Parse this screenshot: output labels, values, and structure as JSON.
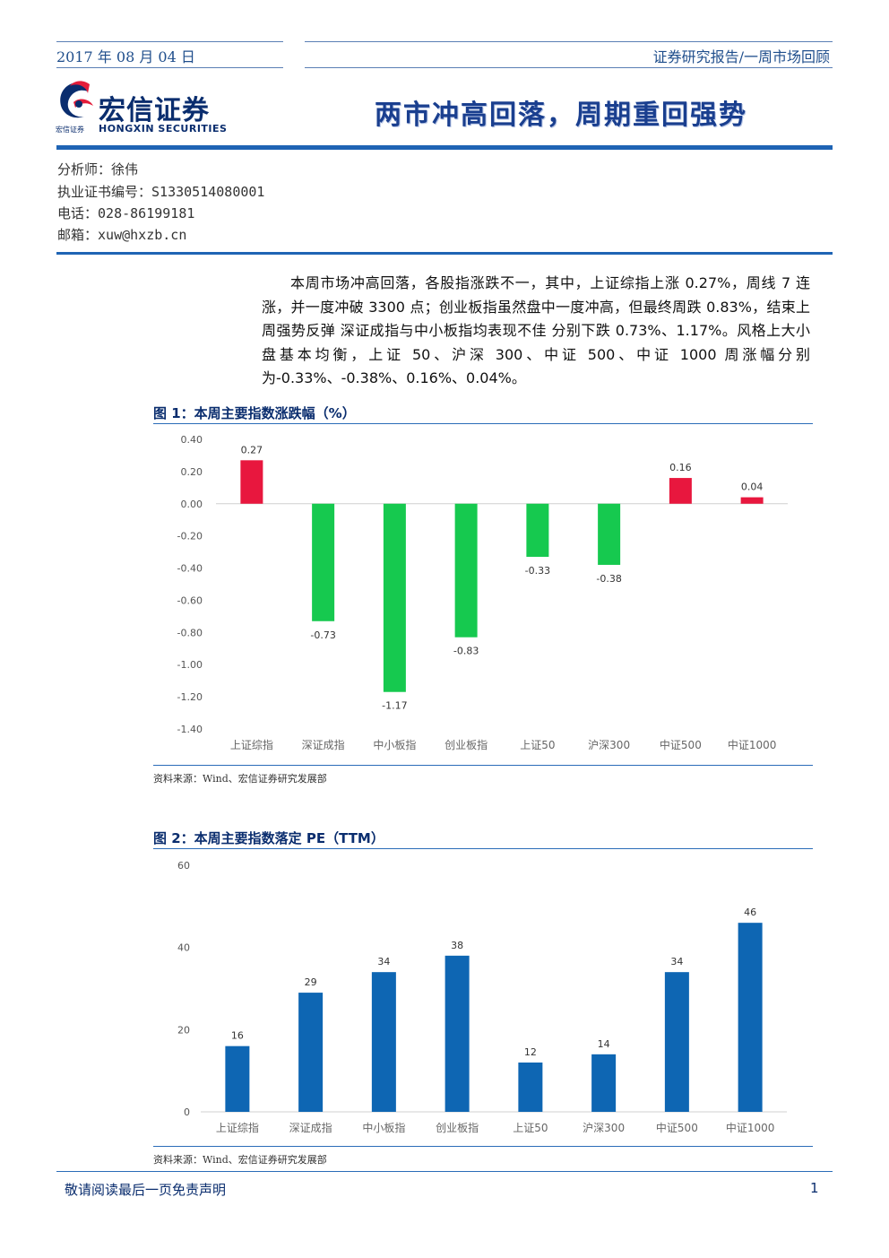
{
  "header": {
    "date": "2017 年 08 月 04 日",
    "report_type": "证券研究报告/一周市场回顾"
  },
  "logo": {
    "name_cn": "宏信证券",
    "name_en": "HONGXIN SECURITIES",
    "small_text": "宏信证券"
  },
  "main_title": "两市冲高回落，周期重回强势",
  "analyst": {
    "analyst_label": "分析师：",
    "analyst_value": "徐伟",
    "cert_label": "执业证书编号：",
    "cert_value": "S1330514080001",
    "phone_label": "电话：",
    "phone_value": "028-86199181",
    "email_label": "邮箱：",
    "email_value": "xuw@hxzb.cn"
  },
  "summary": "本周市场冲高回落，各股指涨跌不一，其中，上证综指上涨 0.27%，周线 7 连涨，并一度冲破 3300 点；创业板指虽然盘中一度冲高，但最终周跌 0.83%，结束上周强势反弹 深证成指与中小板指均表现不佳 分别下跌 0.73%、1.17%。风格上大小盘基本均衡，上证 50、沪深 300、中证 500、中证 1000 周涨幅分别为-0.33%、-0.38%、0.16%、0.04%。",
  "figure1": {
    "title": "图 1：本周主要指数涨跌幅（%）",
    "source": "资料来源：Wind、宏信证券研究发展部"
  },
  "figure2": {
    "title": "图 2：本周主要指数落定 PE（TTM）",
    "source": "资料来源：Wind、宏信证券研究发展部"
  },
  "chart_data": [
    {
      "type": "bar",
      "title": "图 1：本周主要指数涨跌幅（%）",
      "categories": [
        "上证综指",
        "深证成指",
        "中小板指",
        "创业板指",
        "上证50",
        "沪深300",
        "中证500",
        "中证1000"
      ],
      "values": [
        0.27,
        -0.73,
        -1.17,
        -0.83,
        -0.33,
        -0.38,
        0.16,
        0.04
      ],
      "labels": [
        "0.27",
        "-0.73",
        "-1.17",
        "-0.83",
        "-0.33",
        "-0.38",
        "0.16",
        "0.04"
      ],
      "ylim": [
        -1.4,
        0.4
      ],
      "yticks": [
        "0.40",
        "0.20",
        "0.00",
        "-0.20",
        "-0.40",
        "-0.60",
        "-0.80",
        "-1.00",
        "-1.20",
        "-1.40"
      ],
      "ytick_values": [
        0.4,
        0.2,
        0.0,
        -0.2,
        -0.4,
        -0.6,
        -0.8,
        -1.0,
        -1.2,
        -1.4
      ],
      "positive_color": "#e8173e",
      "negative_color": "#16c94f",
      "grid": false
    },
    {
      "type": "bar",
      "title": "图 2：本周主要指数落定 PE（TTM）",
      "categories": [
        "上证综指",
        "深证成指",
        "中小板指",
        "创业板指",
        "上证50",
        "沪深300",
        "中证500",
        "中证1000"
      ],
      "values": [
        16,
        29,
        34,
        38,
        12,
        14,
        34,
        46
      ],
      "labels": [
        "16",
        "29",
        "34",
        "38",
        "12",
        "14",
        "34",
        "46"
      ],
      "ylim": [
        0,
        60
      ],
      "yticks": [
        "60",
        "40",
        "20",
        "0"
      ],
      "ytick_values": [
        60,
        40,
        20,
        0
      ],
      "bar_color": "#0e66b3",
      "grid": false
    }
  ],
  "footer": {
    "disclaimer": "敬请阅读最后一页免责声明",
    "page": "1"
  }
}
